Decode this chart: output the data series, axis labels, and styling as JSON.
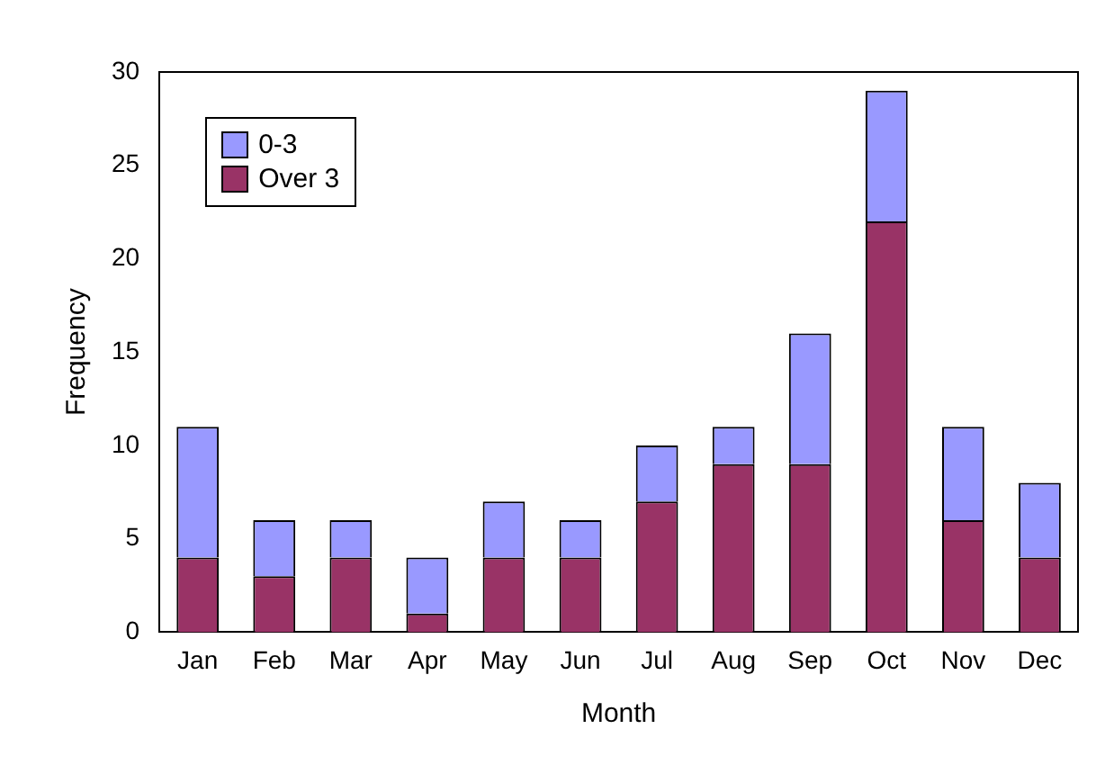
{
  "chart_data": {
    "type": "bar",
    "stacked": true,
    "xlabel": "Month",
    "ylabel": "Frequency",
    "categories": [
      "Jan",
      "Feb",
      "Mar",
      "Apr",
      "May",
      "Jun",
      "Jul",
      "Aug",
      "Sep",
      "Oct",
      "Nov",
      "Dec"
    ],
    "series": [
      {
        "name": "Over 3",
        "color": "#993366",
        "values": [
          4,
          3,
          4,
          1,
          4,
          4,
          7,
          9,
          9,
          22,
          6,
          4
        ]
      },
      {
        "name": "0-3",
        "color": "#9999ff",
        "values": [
          7,
          3,
          2,
          3,
          3,
          2,
          3,
          2,
          7,
          7,
          5,
          4
        ]
      }
    ],
    "ylim": [
      0,
      30
    ],
    "yticks": [
      0,
      5,
      10,
      15,
      20,
      25,
      30
    ],
    "grid": false,
    "legend": "top left"
  }
}
